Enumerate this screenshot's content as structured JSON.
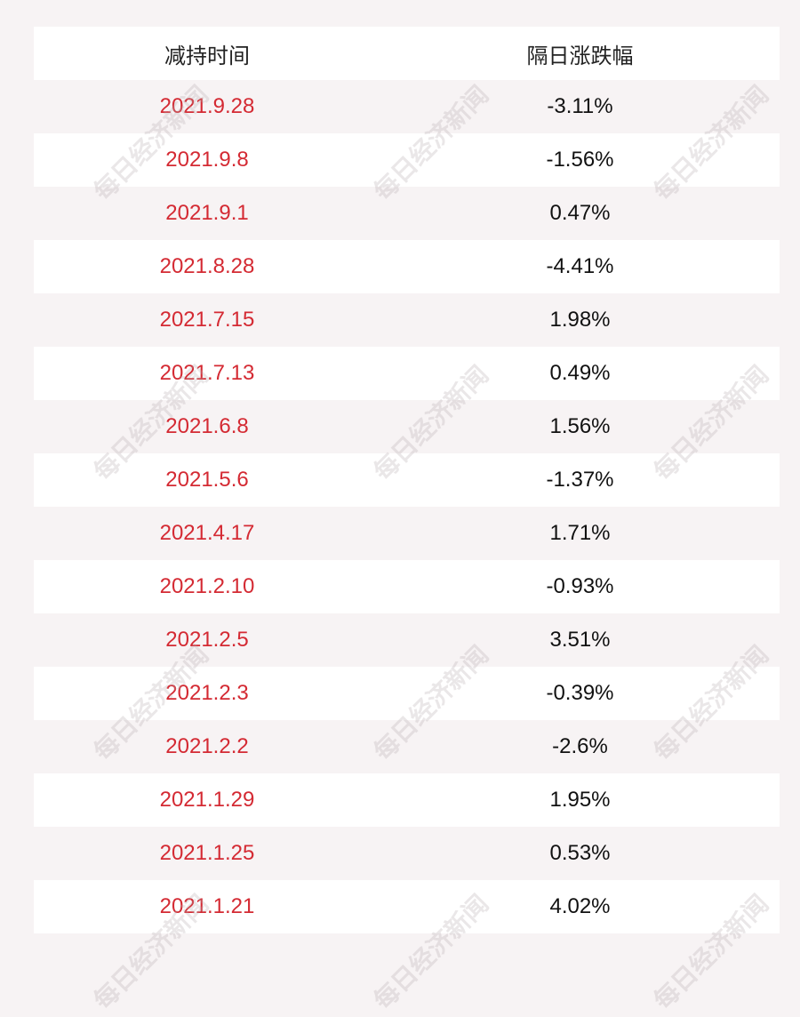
{
  "watermark": "每日经济新闻",
  "table": {
    "header": [
      "减持时间",
      "隔日涨跌幅"
    ],
    "rows": [
      [
        "2021.9.28",
        "-3.11%"
      ],
      [
        "2021.9.8",
        "-1.56%"
      ],
      [
        "2021.9.1",
        "0.47%"
      ],
      [
        "2021.8.28",
        "-4.41%"
      ],
      [
        "2021.7.15",
        "1.98%"
      ],
      [
        "2021.7.13",
        "0.49%"
      ],
      [
        "2021.6.8",
        "1.56%"
      ],
      [
        "2021.5.6",
        "-1.37%"
      ],
      [
        "2021.4.17",
        "1.71%"
      ],
      [
        "2021.2.10",
        "-0.93%"
      ],
      [
        "2021.2.5",
        "3.51%"
      ],
      [
        "2021.2.3",
        "-0.39%"
      ],
      [
        "2021.2.2",
        "-2.6%"
      ],
      [
        "2021.1.29",
        "1.95%"
      ],
      [
        "2021.1.25",
        "0.53%"
      ],
      [
        "2021.1.21",
        "4.02%"
      ]
    ]
  }
}
